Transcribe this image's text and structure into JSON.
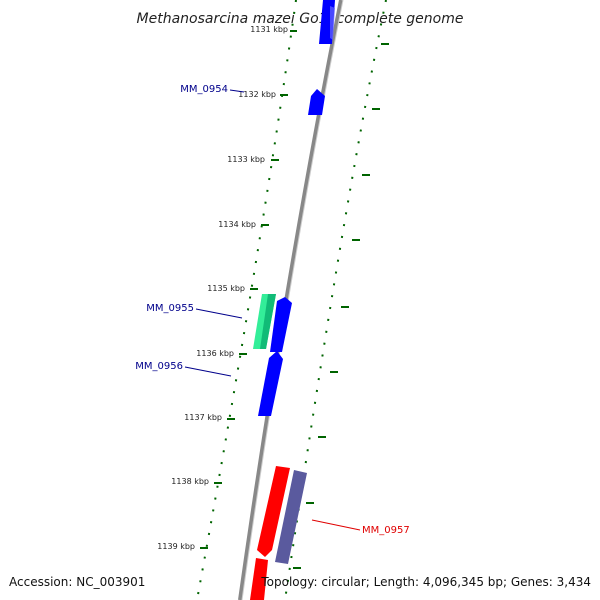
{
  "title": "Methanosarcina mazei Go1, complete genome",
  "footer": {
    "accession": "Accession: NC_003901",
    "summary": "Topology: circular; Length: 4,096,345 bp; Genes: 3,434"
  },
  "ticks": [
    {
      "label": "1131 kbp"
    },
    {
      "label": "1132 kbp"
    },
    {
      "label": "1133 kbp"
    },
    {
      "label": "1134 kbp"
    },
    {
      "label": "1135 kbp"
    },
    {
      "label": "1136 kbp"
    },
    {
      "label": "1137 kbp"
    },
    {
      "label": "1138 kbp"
    },
    {
      "label": "1139 kbp"
    }
  ],
  "genes": [
    {
      "label": "MM_0954",
      "color": "#00008b"
    },
    {
      "label": "MM_0955",
      "color": "#00008b"
    },
    {
      "label": "MM_0956",
      "color": "#00008b"
    },
    {
      "label": "MM_0957",
      "color": "#e00000"
    }
  ],
  "colors": {
    "forward_cds": "#0000ff",
    "reverse_cds": "#ff0000",
    "rna": "#33ee99",
    "purple_feature": "#5a5a9e",
    "tick": "#006400",
    "backbone": "#888888"
  }
}
